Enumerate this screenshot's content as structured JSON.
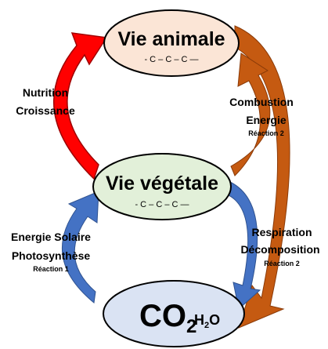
{
  "nodes": [
    {
      "label": "Vie animale",
      "chain": "- C – C – C —"
    },
    {
      "label": "Vie végétale",
      "chain": "- C – C – C —"
    },
    {
      "label": "CO",
      "sub": "2",
      "water": "H",
      "water_sub": "2",
      "water_end": "O"
    }
  ],
  "edges": [
    {
      "lines": [
        "Nutrition",
        "Croissance"
      ]
    },
    {
      "lines": [
        "Combustion",
        "Energie"
      ],
      "note": "Réaction 2"
    },
    {
      "lines": [
        "Energie  Solaire",
        "Photosynthèse"
      ],
      "note": "Réaction 1"
    },
    {
      "lines": [
        "Respiration",
        "Décomposition"
      ],
      "note": "Réaction 2"
    }
  ]
}
